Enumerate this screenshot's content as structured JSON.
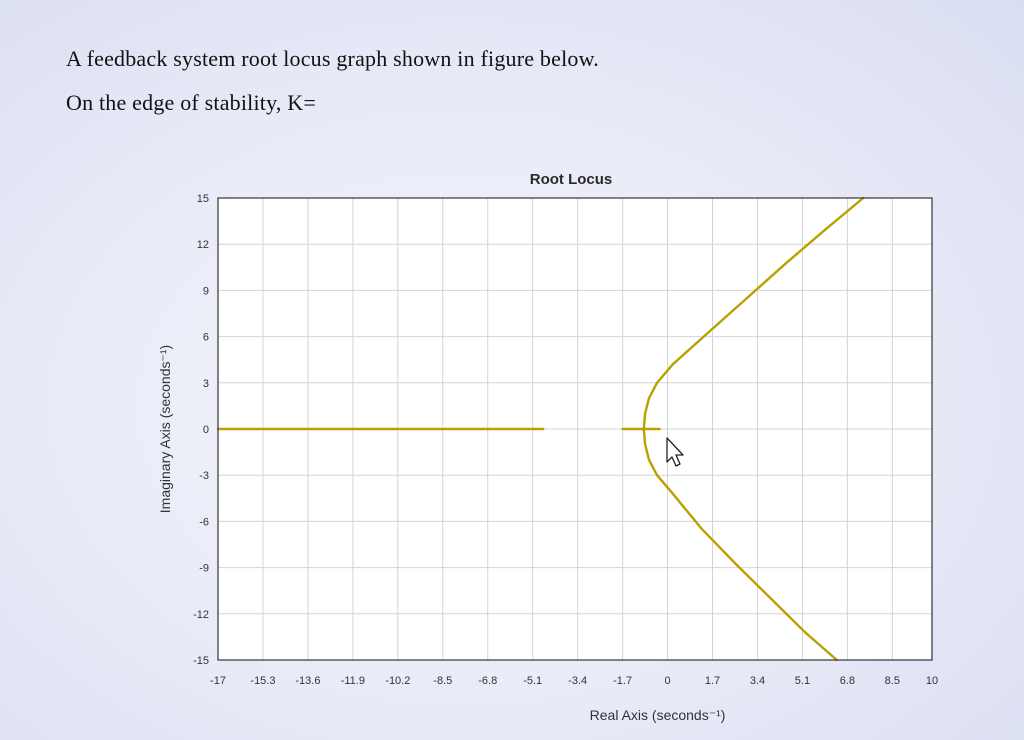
{
  "question": {
    "line1": "A feedback system root locus graph shown in figure below.",
    "line2": "On the edge of stability, K="
  },
  "chart_data": {
    "type": "line",
    "title": "Root Locus",
    "xlabel": "Real Axis (seconds⁻¹)",
    "ylabel": "Imaginary Axis (seconds⁻¹)",
    "xlim": [
      -17,
      10
    ],
    "ylim": [
      -15,
      15
    ],
    "xticks": [
      "-17",
      "-15.3",
      "-13.6",
      "-11.9",
      "-10.2",
      "-8.5",
      "-6.8",
      "-5.1",
      "-3.4",
      "-1.7",
      "0",
      "1.7",
      "3.4",
      "5.1",
      "6.8",
      "8.5",
      "10"
    ],
    "yticks": [
      "15",
      "12",
      "9",
      "6",
      "3",
      "0",
      "-3",
      "-6",
      "-9",
      "-12",
      "-15"
    ],
    "grid": true,
    "color": "#b8a200",
    "series": [
      {
        "x": [
          -17,
          -4.7
        ],
        "y": [
          0,
          0
        ]
      },
      {
        "x": [
          -1.7,
          -0.3
        ],
        "y": [
          0,
          0
        ]
      },
      {
        "x": [
          -0.9,
          -0.85,
          -0.7,
          -0.4,
          0.2,
          1.5,
          3.0,
          4.5,
          6.0,
          7.4
        ],
        "y": [
          0,
          1.0,
          2.0,
          3.0,
          4.2,
          6.2,
          8.5,
          10.8,
          13.0,
          15.0
        ]
      },
      {
        "x": [
          -0.9,
          -0.85,
          -0.7,
          -0.4,
          0.2,
          1.3,
          2.6,
          3.9,
          5.2,
          6.4
        ],
        "y": [
          0,
          -1.0,
          -2.0,
          -3.0,
          -4.2,
          -6.5,
          -8.8,
          -11.0,
          -13.2,
          -15.0
        ]
      }
    ]
  }
}
